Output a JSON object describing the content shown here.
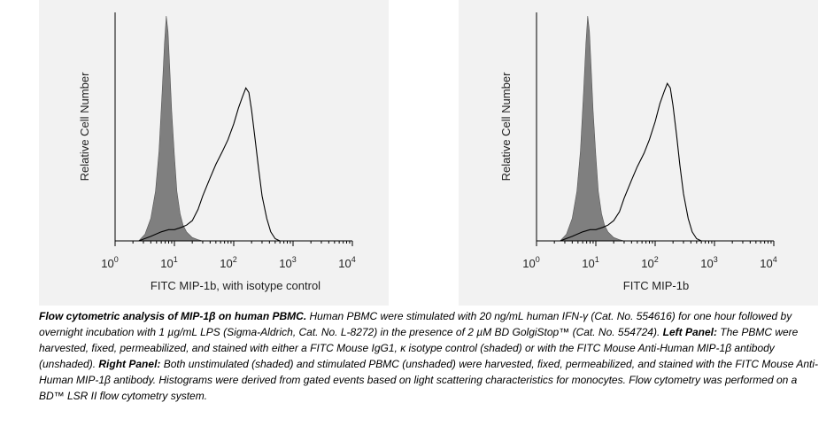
{
  "chart_data": [
    {
      "type": "area",
      "panel": "left",
      "xlabel": "FITC MIP-1b, with isotype control",
      "ylabel": "Relative Cell Number",
      "xscale": "log",
      "xlim": [
        1,
        10000
      ],
      "x_ticks": [
        {
          "base": "10",
          "exp": "0"
        },
        {
          "base": "10",
          "exp": "1"
        },
        {
          "base": "10",
          "exp": "2"
        },
        {
          "base": "10",
          "exp": "3"
        },
        {
          "base": "10",
          "exp": "4"
        }
      ],
      "series": [
        {
          "shaded": true,
          "fill": "#7f7f7f",
          "x": [
            2.5,
            3.2,
            4.0,
            4.8,
            5.5,
            6.2,
            6.8,
            7.3,
            7.8,
            8.3,
            9.0,
            10.0,
            11.0,
            12.5,
            14.0,
            16.0,
            20.0,
            25.0,
            30.0
          ],
          "y": [
            0,
            0.03,
            0.1,
            0.22,
            0.4,
            0.66,
            0.88,
            1.0,
            0.93,
            0.78,
            0.58,
            0.38,
            0.22,
            0.12,
            0.07,
            0.04,
            0.015,
            0.005,
            0
          ]
        },
        {
          "shaded": false,
          "stroke": "#000000",
          "x": [
            2.5,
            4.0,
            6.0,
            8.0,
            10.0,
            13.0,
            16.0,
            20.0,
            25.0,
            30.0,
            40.0,
            50.0,
            65.0,
            80.0,
            100.0,
            120.0,
            140.0,
            160.0,
            180.0,
            200.0,
            230.0,
            260.0,
            300.0,
            360.0,
            420.0,
            500.0,
            600.0
          ],
          "y": [
            0,
            0.02,
            0.04,
            0.05,
            0.05,
            0.06,
            0.07,
            0.09,
            0.14,
            0.2,
            0.28,
            0.34,
            0.4,
            0.45,
            0.52,
            0.59,
            0.64,
            0.68,
            0.66,
            0.58,
            0.45,
            0.33,
            0.2,
            0.1,
            0.04,
            0.01,
            0
          ]
        }
      ]
    },
    {
      "type": "area",
      "panel": "right",
      "xlabel": "FITC MIP-1b",
      "ylabel": "Relative Cell Number",
      "xscale": "log",
      "xlim": [
        1,
        10000
      ],
      "x_ticks": [
        {
          "base": "10",
          "exp": "0"
        },
        {
          "base": "10",
          "exp": "1"
        },
        {
          "base": "10",
          "exp": "2"
        },
        {
          "base": "10",
          "exp": "3"
        },
        {
          "base": "10",
          "exp": "4"
        }
      ],
      "series": [
        {
          "shaded": true,
          "fill": "#7f7f7f",
          "x": [
            2.5,
            3.2,
            4.0,
            4.8,
            5.5,
            6.2,
            6.8,
            7.3,
            7.8,
            8.3,
            9.0,
            10.0,
            11.0,
            12.5,
            14.0,
            16.0,
            20.0,
            25.0,
            30.0
          ],
          "y": [
            0,
            0.03,
            0.1,
            0.22,
            0.4,
            0.66,
            0.88,
            1.0,
            0.93,
            0.78,
            0.58,
            0.38,
            0.22,
            0.12,
            0.07,
            0.04,
            0.015,
            0.005,
            0
          ]
        },
        {
          "shaded": false,
          "stroke": "#000000",
          "x": [
            2.5,
            4.0,
            6.0,
            8.0,
            10.0,
            13.0,
            16.0,
            20.0,
            25.0,
            30.0,
            40.0,
            50.0,
            65.0,
            80.0,
            100.0,
            120.0,
            140.0,
            160.0,
            180.0,
            200.0,
            230.0,
            260.0,
            300.0,
            360.0,
            420.0,
            500.0,
            600.0
          ],
          "y": [
            0,
            0.02,
            0.04,
            0.05,
            0.05,
            0.06,
            0.07,
            0.09,
            0.13,
            0.19,
            0.27,
            0.33,
            0.39,
            0.45,
            0.53,
            0.61,
            0.66,
            0.7,
            0.68,
            0.6,
            0.47,
            0.34,
            0.21,
            0.1,
            0.04,
            0.01,
            0
          ]
        }
      ]
    }
  ],
  "caption": {
    "title": "Flow cytometric analysis of MIP-1β on human PBMC.",
    "body1": " Human PBMC were stimulated with 20 ng/mL human IFN-γ (Cat. No. 554616) for one hour followed by overnight incubation with 1 µg/mL LPS (Sigma-Aldrich, Cat. No. L-8272) in the presence of 2 µM BD GolgiStop™ (Cat. No. 554724). ",
    "left_label": "Left Panel:",
    "body2": " The PBMC were harvested, fixed, permeabilized, and stained with either a FITC Mouse IgG1, κ isotype control (shaded) or with the FITC Mouse Anti-Human MIP-1β antibody (unshaded).  ",
    "right_label": "Right Panel:",
    "body3": " Both unstimulated (shaded) and stimulated PBMC (unshaded) were harvested, fixed, permeabilized, and stained with the FITC Mouse Anti-Human MIP-1β antibody.  Histograms were derived from gated events based on light scattering characteristics for monocytes.  Flow cytometry was performed on a BD™ LSR II flow cytometry system."
  }
}
